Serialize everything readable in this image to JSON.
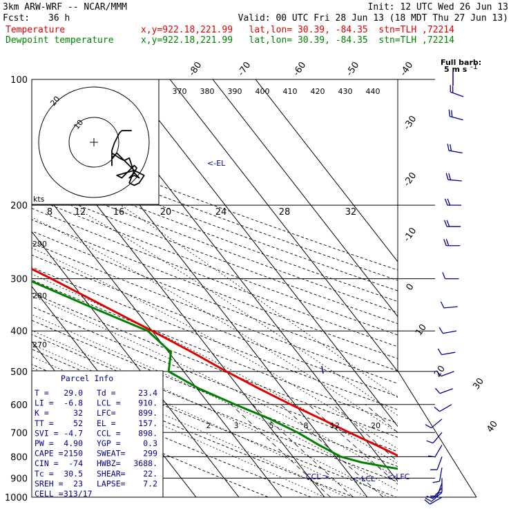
{
  "header": {
    "title": "3km ARW-WRF -- NCAR/MMM",
    "init": "Init: 12 UTC Wed 26 Jun 13",
    "fcst_label": "Fcst:",
    "fcst_value": "36 h",
    "valid": "Valid: 00 UTC Fri 28 Jun 13 (18 MDT Thu 27 Jun 13)",
    "temp_label": "Temperature",
    "temp_info": "x,y=922.18,221.99   lat,lon= 30.39, -84.35  stn=TLH ,72214",
    "dew_label": "Dewpoint temperature",
    "dew_info": "x,y=922.18,221.99   lat,lon= 30.39, -84.35  stn=TLH ,72214"
  },
  "barb_key": {
    "line1": "Full barb:",
    "line2": "5 m s",
    "sup": "-1"
  },
  "colors": {
    "temperature": "#e00000",
    "dewpoint": "#008000",
    "text_dark": "#00008b",
    "grid": "#000000"
  },
  "chart_data": {
    "type": "line",
    "ylabel": "",
    "y_scale": "log-pressure (hPa)",
    "pressure_range": [
      1000,
      100
    ],
    "pressure_ticks": [
      "100",
      "200",
      "300",
      "400",
      "500",
      "600",
      "700",
      "800",
      "900",
      "1000"
    ],
    "isotherm_labels": [
      "-80",
      "-70",
      "-60",
      "-50",
      "-40",
      "-30",
      "-20",
      "-10",
      "0",
      "10",
      "20",
      "30",
      "40"
    ],
    "theta_top_labels": [
      "370",
      "380",
      "390",
      "400",
      "410",
      "420",
      "430",
      "440"
    ],
    "theta_side_labels": [
      "290",
      "280",
      "270"
    ],
    "mixing_ratio_labels": [
      "2",
      "3",
      "5",
      "8",
      "12",
      "20"
    ],
    "hodograph": {
      "unit_label": "kts",
      "speed_labels": [
        "8",
        "12",
        "16",
        "20",
        "24",
        "28",
        "32"
      ],
      "ring_labels": [
        "20",
        "10"
      ],
      "path_uv": [
        [
          -5,
          -1
        ],
        [
          -2,
          -3
        ],
        [
          0,
          -4
        ],
        [
          2,
          -3
        ],
        [
          3,
          -6
        ],
        [
          4,
          -9
        ],
        [
          2,
          -11
        ],
        [
          4,
          -10
        ],
        [
          6,
          -11
        ],
        [
          4,
          -9
        ],
        [
          5,
          -7
        ],
        [
          4,
          -6
        ],
        [
          2,
          -8
        ],
        [
          -1,
          -11
        ],
        [
          -3,
          -10
        ],
        [
          4,
          -8
        ],
        [
          6,
          -9
        ],
        [
          8,
          -10
        ],
        [
          6,
          -13
        ],
        [
          4,
          -14
        ],
        [
          2,
          -13
        ],
        [
          4,
          -8
        ],
        [
          1,
          -5
        ],
        [
          -2,
          -2
        ],
        [
          -3,
          -1
        ],
        [
          -4,
          -2
        ],
        [
          -5,
          -3
        ],
        [
          -5,
          -6
        ],
        [
          -5,
          -4
        ],
        [
          -5,
          -2
        ],
        [
          -5,
          0
        ],
        [
          -4,
          3
        ],
        [
          -3,
          5
        ],
        [
          -2,
          7
        ],
        [
          -1,
          8
        ],
        [
          1,
          8
        ],
        [
          3,
          8
        ]
      ]
    },
    "series": [
      {
        "name": "Temperature",
        "color": "#e00000",
        "points": [
          {
            "p": 1000,
            "t": 29.0
          },
          {
            "p": 975,
            "t": 26.4
          },
          {
            "p": 950,
            "t": 24.6
          },
          {
            "p": 925,
            "t": 23.0
          },
          {
            "p": 900,
            "t": 21.8
          },
          {
            "p": 875,
            "t": 20.4
          },
          {
            "p": 850,
            "t": 18.5
          },
          {
            "p": 800,
            "t": 15.0
          },
          {
            "p": 750,
            "t": 11.5
          },
          {
            "p": 700,
            "t": 7.6
          },
          {
            "p": 650,
            "t": 3.5
          },
          {
            "p": 600,
            "t": -1.0
          },
          {
            "p": 550,
            "t": -5.5
          },
          {
            "p": 500,
            "t": -10.0
          },
          {
            "p": 450,
            "t": -14.5
          },
          {
            "p": 400,
            "t": -20.0
          },
          {
            "p": 350,
            "t": -26.5
          },
          {
            "p": 300,
            "t": -34.0
          },
          {
            "p": 250,
            "t": -43.5
          },
          {
            "p": 200,
            "t": -55.0
          },
          {
            "p": 175,
            "t": -62.0
          },
          {
            "p": 150,
            "t": -70.0
          },
          {
            "p": 135,
            "t": -72.5
          },
          {
            "p": 125,
            "t": -72.0
          },
          {
            "p": 115,
            "t": -70.0
          },
          {
            "p": 100,
            "t": -66.0
          }
        ]
      },
      {
        "name": "Dewpoint temperature",
        "color": "#008000",
        "points": [
          {
            "p": 1000,
            "t": 23.4
          },
          {
            "p": 975,
            "t": 22.8
          },
          {
            "p": 950,
            "t": 22.2
          },
          {
            "p": 925,
            "t": 21.6
          },
          {
            "p": 900,
            "t": 20.4
          },
          {
            "p": 875,
            "t": 17.0
          },
          {
            "p": 850,
            "t": 11.0
          },
          {
            "p": 825,
            "t": 5.0
          },
          {
            "p": 800,
            "t": 1.2
          },
          {
            "p": 750,
            "t": -1.8
          },
          {
            "p": 700,
            "t": -4.5
          },
          {
            "p": 650,
            "t": -8.5
          },
          {
            "p": 600,
            "t": -14.0
          },
          {
            "p": 550,
            "t": -19.5
          },
          {
            "p": 500,
            "t": -23.5
          },
          {
            "p": 450,
            "t": -19.5
          },
          {
            "p": 400,
            "t": -21.0
          },
          {
            "p": 350,
            "t": -30.0
          },
          {
            "p": 300,
            "t": -40.0
          },
          {
            "p": 250,
            "t": -51.0
          },
          {
            "p": 200,
            "t": -62.0
          },
          {
            "p": 175,
            "t": -69.0
          },
          {
            "p": 150,
            "t": -75.0
          },
          {
            "p": 125,
            "t": -80.0
          },
          {
            "p": 100,
            "t": -80.0
          }
        ]
      }
    ],
    "markers": [
      {
        "label": "EL",
        "p": 157
      },
      {
        "label": "CCL",
        "p": 898
      },
      {
        "label": "LCL",
        "p": 910
      },
      {
        "label": "LFC",
        "p": 899
      }
    ]
  },
  "parcel_info": {
    "title": "Parcel Info",
    "rows": [
      [
        "T  =",
        "29.0",
        "Td =",
        "23.4"
      ],
      [
        "LI =",
        "-6.8",
        "LCL =",
        "910."
      ],
      [
        "K  =",
        "32",
        "LFC=",
        "899."
      ],
      [
        "TT =",
        "52",
        "EL =",
        "157."
      ],
      [
        "SVI =",
        "-4.7",
        "CCL =",
        "898."
      ],
      [
        "PW =",
        "4.90",
        "YGP =",
        "0.3"
      ],
      [
        "CAPE =",
        "2150",
        "SWEAT=",
        "299"
      ],
      [
        "CIN =",
        "-74",
        "HWBZ=",
        "3688."
      ],
      [
        "Tc =",
        "30.5",
        "SHEAR=",
        "22."
      ],
      [
        "SREH =",
        "23",
        "LAPSE=",
        "7.2"
      ],
      [
        "CELL =",
        "313/17",
        "",
        ""
      ]
    ]
  },
  "wind_barbs": [
    {
      "p": 1000,
      "dir": 240,
      "spd": 5
    },
    {
      "p": 975,
      "dir": 230,
      "spd": 5
    },
    {
      "p": 950,
      "dir": 220,
      "spd": 5
    },
    {
      "p": 925,
      "dir": 200,
      "spd": 5
    },
    {
      "p": 900,
      "dir": 180,
      "spd": 5
    },
    {
      "p": 850,
      "dir": 190,
      "spd": 5
    },
    {
      "p": 800,
      "dir": 200,
      "spd": 5
    },
    {
      "p": 750,
      "dir": 210,
      "spd": 5
    },
    {
      "p": 700,
      "dir": 220,
      "spd": 5
    },
    {
      "p": 650,
      "dir": 230,
      "spd": 5
    },
    {
      "p": 600,
      "dir": 240,
      "spd": 5
    },
    {
      "p": 550,
      "dir": 250,
      "spd": 5
    },
    {
      "p": 500,
      "dir": 250,
      "spd": 5
    },
    {
      "p": 450,
      "dir": 260,
      "spd": 5
    },
    {
      "p": 400,
      "dir": 260,
      "spd": 5
    },
    {
      "p": 350,
      "dir": 265,
      "spd": 5
    },
    {
      "p": 300,
      "dir": 270,
      "spd": 5
    },
    {
      "p": 250,
      "dir": 270,
      "spd": 10
    },
    {
      "p": 225,
      "dir": 270,
      "spd": 10
    },
    {
      "p": 200,
      "dir": 270,
      "spd": 10
    },
    {
      "p": 175,
      "dir": 275,
      "spd": 10
    },
    {
      "p": 150,
      "dir": 280,
      "spd": 10
    },
    {
      "p": 125,
      "dir": 285,
      "spd": 10
    },
    {
      "p": 110,
      "dir": 290,
      "spd": 10
    }
  ]
}
